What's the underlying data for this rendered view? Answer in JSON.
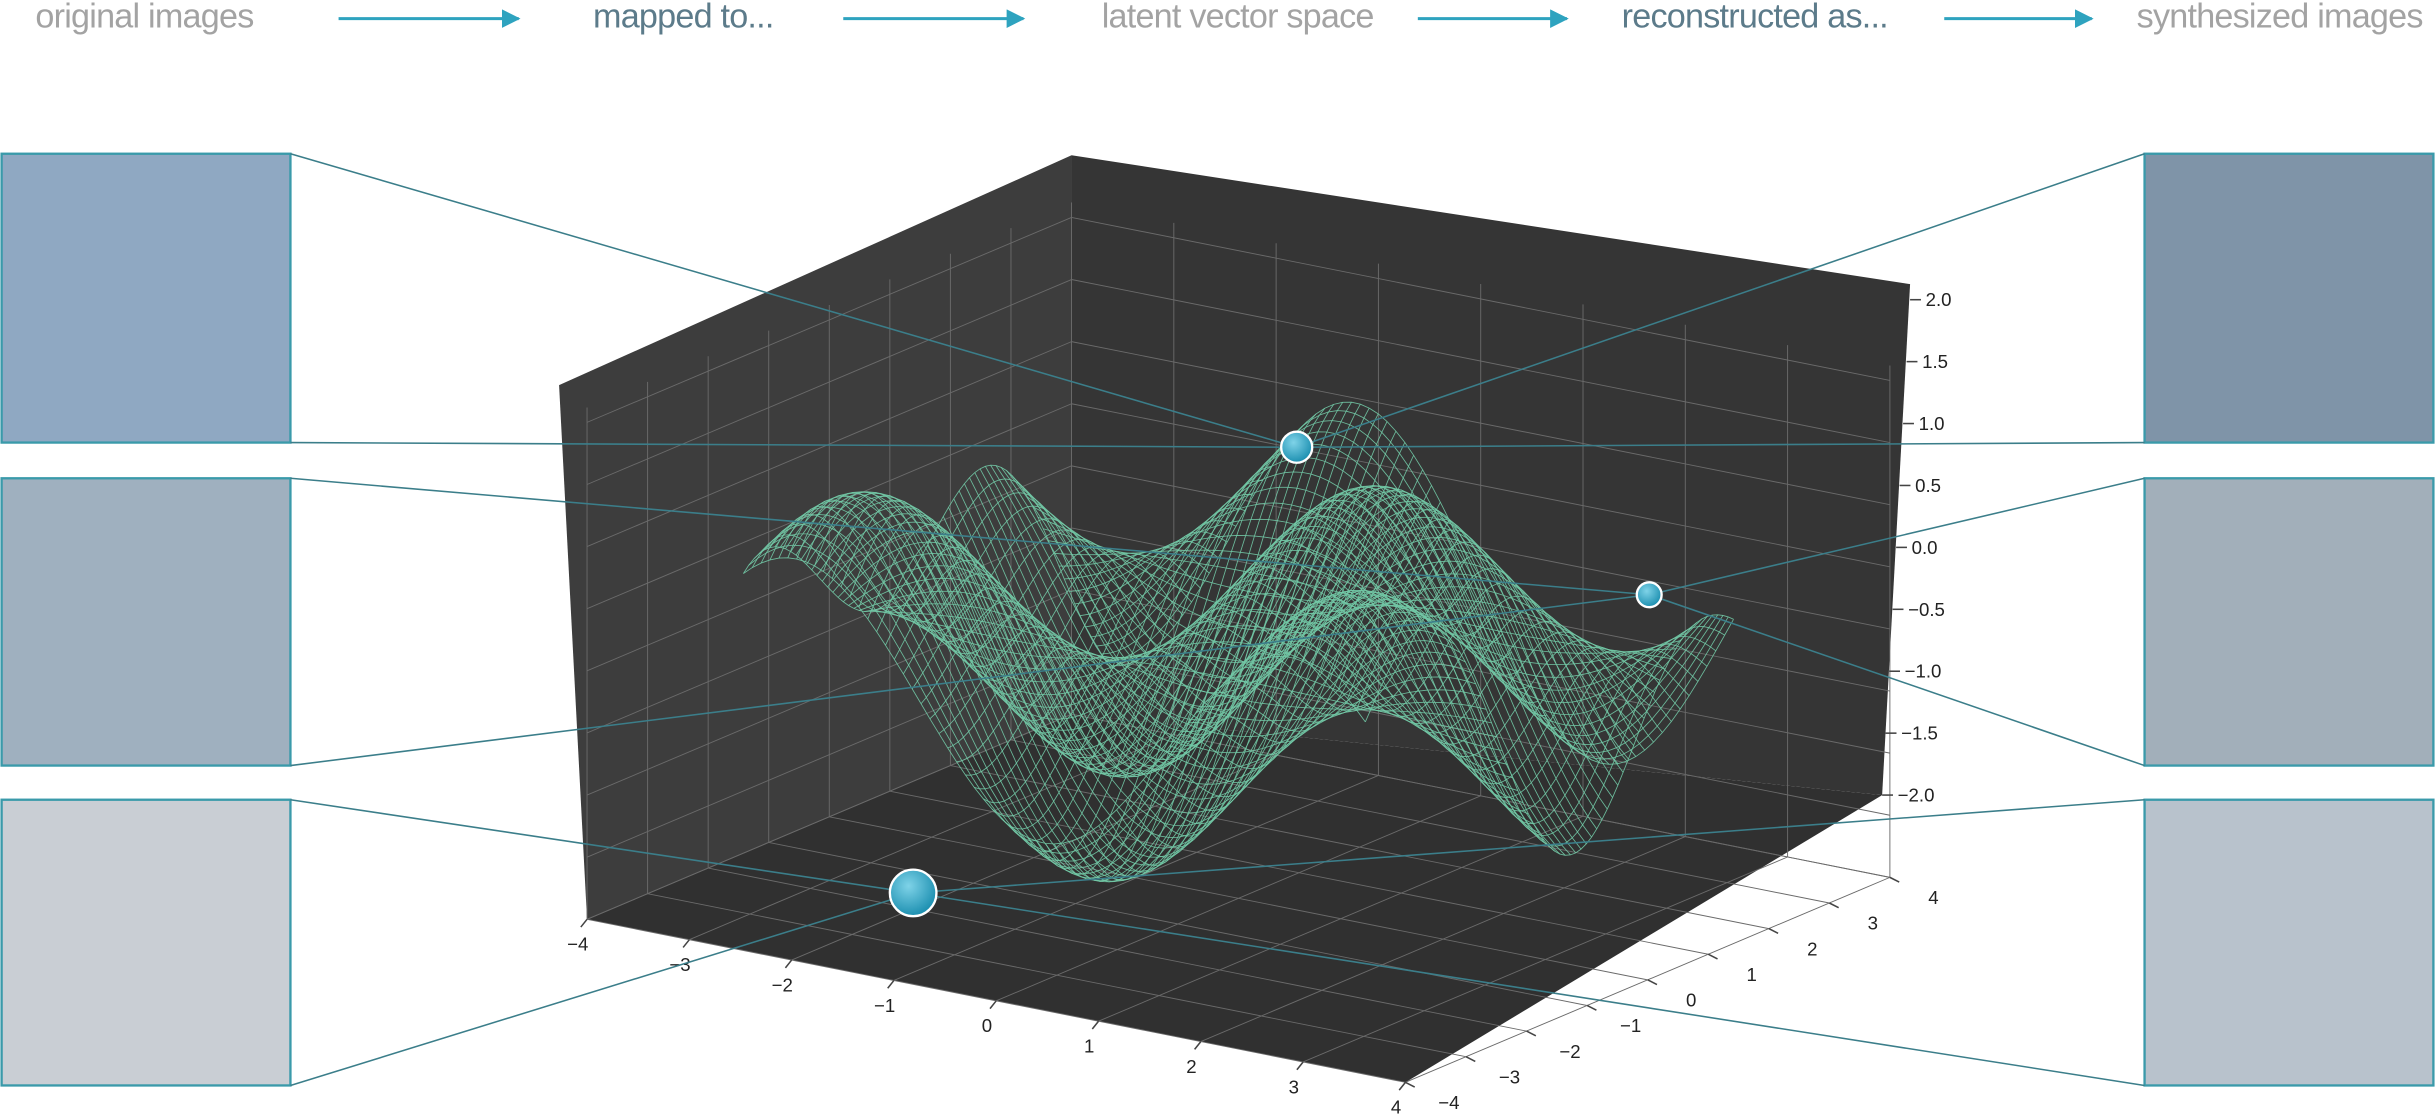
{
  "header": {
    "steps": [
      "original images",
      "mapped to...",
      "latent vector space",
      "reconstructed as...",
      "synthesized images"
    ]
  },
  "plot": {
    "x_ticks": [
      "−4",
      "−3",
      "−2",
      "−1",
      "0",
      "1",
      "2",
      "3",
      "4"
    ],
    "y_ticks": [
      "−4",
      "−3",
      "−2",
      "−1",
      "0",
      "1",
      "2",
      "3",
      "4"
    ],
    "z_ticks": [
      "−2.0",
      "−1.5",
      "−1.0",
      "−0.5",
      "0.0",
      "0.5",
      "1.0",
      "1.5",
      "2.0"
    ]
  }
}
